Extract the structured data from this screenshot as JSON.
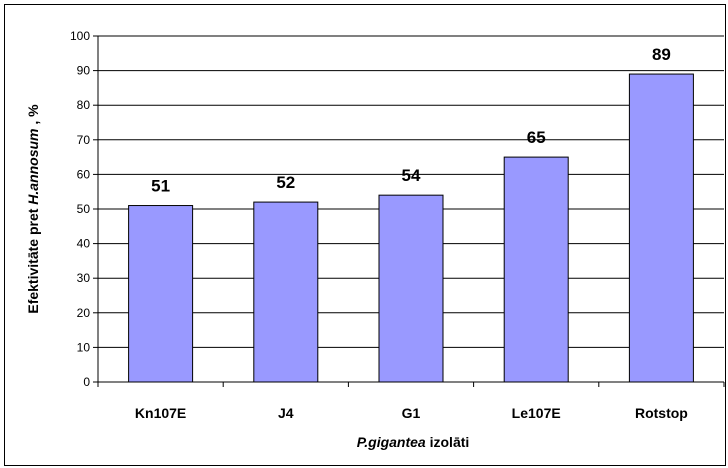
{
  "chart_data": {
    "type": "bar",
    "categories": [
      "Kn107E",
      "J4",
      "G1",
      "Le107E",
      "Rotstop"
    ],
    "values": [
      51,
      52,
      54,
      65,
      89
    ],
    "data_labels": [
      "51",
      "52",
      "54",
      "65",
      "89"
    ],
    "ylabel": {
      "prefix": "Efektivitāte pret ",
      "italic": "H.annosum",
      "suffix": " , %"
    },
    "xlabel": {
      "italic": "P.gigantea",
      "suffix": " izolāti"
    },
    "ylim": [
      0,
      100
    ],
    "yticks": [
      "0",
      "10",
      "20",
      "30",
      "40",
      "50",
      "60",
      "70",
      "80",
      "90",
      "100"
    ],
    "grid": true,
    "legend": "none",
    "bar_color": "#9999ff"
  }
}
